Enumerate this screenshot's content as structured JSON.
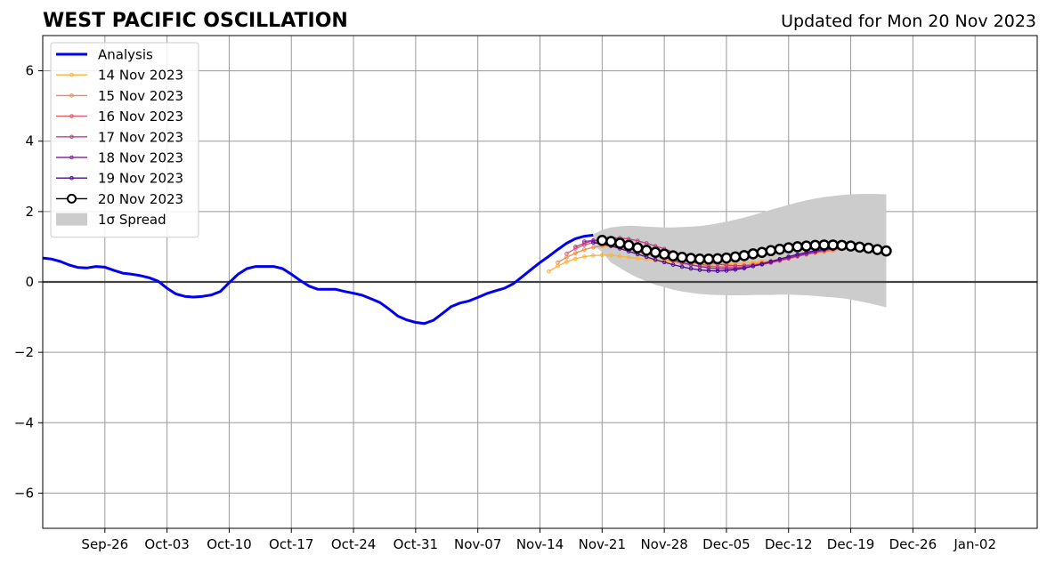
{
  "chart_data": {
    "type": "line",
    "title": "WEST PACIFIC OSCILLATION",
    "subtitle": "Updated for Mon 20 Nov 2023",
    "xlabel": "",
    "ylabel": "",
    "x_units": "date",
    "xlim": [
      "2023-09-19",
      "2024-01-09"
    ],
    "ylim": [
      -7,
      7
    ],
    "x_tick_labels": [
      "Sep-26",
      "Oct-03",
      "Oct-10",
      "Oct-17",
      "Oct-24",
      "Oct-31",
      "Nov-07",
      "Nov-14",
      "Nov-21",
      "Nov-28",
      "Dec-05",
      "Dec-12",
      "Dec-19",
      "Dec-26",
      "Jan-02"
    ],
    "x_tick_dates": [
      "2023-09-26",
      "2023-10-03",
      "2023-10-10",
      "2023-10-17",
      "2023-10-24",
      "2023-10-31",
      "2023-11-07",
      "2023-11-14",
      "2023-11-21",
      "2023-11-28",
      "2023-12-05",
      "2023-12-12",
      "2023-12-19",
      "2023-12-26",
      "2024-01-02"
    ],
    "y_ticks": [
      -6,
      -4,
      -2,
      0,
      2,
      4,
      6
    ],
    "y_tick_labels": [
      "−6",
      "−4",
      "−2",
      "0",
      "2",
      "4",
      "6"
    ],
    "grid": true,
    "zero_line": 0,
    "legend_position": "top-left",
    "analysis": {
      "name": "Analysis",
      "color": "#0000ee",
      "start_date": "2023-09-19",
      "values": [
        0.68,
        0.65,
        0.58,
        0.48,
        0.41,
        0.4,
        0.44,
        0.42,
        0.33,
        0.25,
        0.22,
        0.18,
        0.12,
        0.02,
        -0.18,
        -0.34,
        -0.41,
        -0.43,
        -0.41,
        -0.37,
        -0.27,
        -0.02,
        0.22,
        0.38,
        0.44,
        0.44,
        0.44,
        0.38,
        0.22,
        0.04,
        -0.12,
        -0.21,
        -0.21,
        -0.21,
        -0.27,
        -0.32,
        -0.38,
        -0.48,
        -0.59,
        -0.77,
        -0.97,
        -1.08,
        -1.15,
        -1.18,
        -1.09,
        -0.9,
        -0.7,
        -0.6,
        -0.54,
        -0.44,
        -0.33,
        -0.25,
        -0.18,
        -0.05,
        0.15,
        0.35,
        0.55,
        0.73,
        0.92,
        1.1,
        1.23,
        1.3,
        1.33
      ]
    },
    "spread": {
      "name": "1σ Spread",
      "color": "#cccccc",
      "start_date": "2023-11-20",
      "upper": [
        1.35,
        1.48,
        1.55,
        1.58,
        1.6,
        1.59,
        1.57,
        1.56,
        1.55,
        1.55,
        1.56,
        1.57,
        1.59,
        1.62,
        1.66,
        1.71,
        1.77,
        1.83,
        1.9,
        1.97,
        2.05,
        2.12,
        2.19,
        2.26,
        2.32,
        2.37,
        2.41,
        2.44,
        2.47,
        2.49,
        2.5,
        2.5,
        2.5,
        2.49
      ],
      "lower": [
        1.05,
        0.85,
        0.55,
        0.4,
        0.25,
        0.12,
        0.02,
        -0.08,
        -0.15,
        -0.22,
        -0.27,
        -0.31,
        -0.34,
        -0.36,
        -0.37,
        -0.38,
        -0.38,
        -0.38,
        -0.37,
        -0.37,
        -0.37,
        -0.36,
        -0.36,
        -0.37,
        -0.38,
        -0.4,
        -0.42,
        -0.44,
        -0.46,
        -0.5,
        -0.55,
        -0.6,
        -0.66,
        -0.72
      ]
    },
    "series": [
      {
        "name": "14 Nov 2023",
        "color": "#fcb23b",
        "start_date": "2023-11-15",
        "values": [
          0.3,
          0.45,
          0.57,
          0.66,
          0.72,
          0.75,
          0.76,
          0.76,
          0.73,
          0.7,
          0.67,
          0.64,
          0.61,
          0.59,
          0.57,
          0.55,
          0.53,
          0.52,
          0.51,
          0.5,
          0.51,
          0.52,
          0.54,
          0.56,
          0.58,
          0.61,
          0.64,
          0.68,
          0.73,
          0.78,
          0.82,
          0.85,
          0.88
        ]
      },
      {
        "name": "15 Nov 2023",
        "color": "#f58a4c",
        "start_date": "2023-11-16",
        "values": [
          0.55,
          0.7,
          0.82,
          0.92,
          0.98,
          1.02,
          1.02,
          0.98,
          0.92,
          0.86,
          0.79,
          0.72,
          0.65,
          0.58,
          0.52,
          0.48,
          0.45,
          0.44,
          0.43,
          0.44,
          0.46,
          0.48,
          0.51,
          0.55,
          0.59,
          0.64,
          0.69,
          0.74,
          0.78,
          0.82,
          0.86,
          0.9,
          0.93
        ]
      },
      {
        "name": "16 Nov 2023",
        "color": "#e3596a",
        "start_date": "2023-11-17",
        "values": [
          0.8,
          0.95,
          1.05,
          1.12,
          1.15,
          1.16,
          1.15,
          1.1,
          1.04,
          0.96,
          0.88,
          0.8,
          0.72,
          0.64,
          0.57,
          0.51,
          0.46,
          0.43,
          0.41,
          0.41,
          0.42,
          0.45,
          0.49,
          0.54,
          0.6,
          0.66,
          0.72,
          0.78,
          0.84,
          0.89,
          0.93,
          0.96,
          0.98
        ]
      },
      {
        "name": "17 Nov 2023",
        "color": "#c13f80",
        "start_date": "2023-11-18",
        "values": [
          1.0,
          1.1,
          1.17,
          1.22,
          1.25,
          1.25,
          1.22,
          1.17,
          1.1,
          1.02,
          0.94,
          0.85,
          0.77,
          0.69,
          0.62,
          0.56,
          0.51,
          0.48,
          0.46,
          0.46,
          0.48,
          0.52,
          0.57,
          0.63,
          0.69,
          0.75,
          0.81,
          0.86,
          0.91,
          0.95,
          0.98,
          1.0,
          1.01
        ]
      },
      {
        "name": "18 Nov 2023",
        "color": "#8b2aa5",
        "start_date": "2023-11-19",
        "values": [
          1.15,
          1.18,
          1.18,
          1.15,
          1.1,
          1.03,
          0.95,
          0.87,
          0.78,
          0.7,
          0.62,
          0.55,
          0.49,
          0.44,
          0.4,
          0.38,
          0.37,
          0.38,
          0.41,
          0.45,
          0.5,
          0.56,
          0.62,
          0.68,
          0.74,
          0.8,
          0.85,
          0.9,
          0.94,
          0.97,
          0.99,
          1.0,
          1.0
        ]
      },
      {
        "name": "19 Nov 2023",
        "color": "#4b0c8c",
        "start_date": "2023-11-20",
        "values": [
          1.12,
          1.08,
          1.02,
          0.95,
          0.87,
          0.79,
          0.71,
          0.63,
          0.56,
          0.49,
          0.43,
          0.38,
          0.34,
          0.32,
          0.31,
          0.32,
          0.35,
          0.39,
          0.45,
          0.51,
          0.58,
          0.65,
          0.72,
          0.78,
          0.84,
          0.89,
          0.93,
          0.96,
          0.98,
          1.0,
          1.0,
          1.0,
          0.99
        ]
      },
      {
        "name": "20 Nov 2023",
        "color": "#000000",
        "start_date": "2023-11-21",
        "values": [
          1.18,
          1.15,
          1.1,
          1.04,
          0.97,
          0.9,
          0.84,
          0.79,
          0.74,
          0.7,
          0.67,
          0.65,
          0.65,
          0.66,
          0.68,
          0.71,
          0.75,
          0.8,
          0.84,
          0.89,
          0.93,
          0.97,
          1.0,
          1.02,
          1.04,
          1.05,
          1.05,
          1.04,
          1.02,
          0.99,
          0.96,
          0.92,
          0.88
        ]
      }
    ]
  }
}
